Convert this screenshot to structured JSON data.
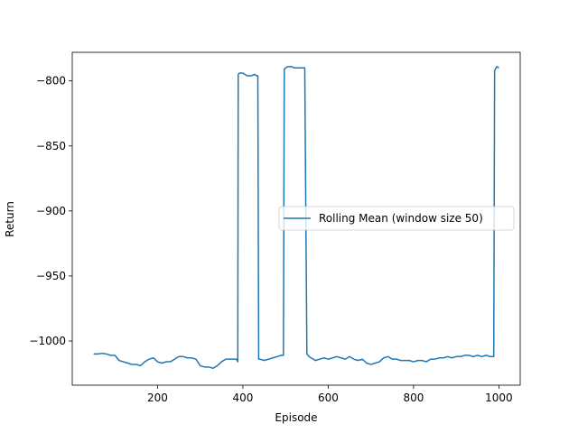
{
  "chart_data": {
    "type": "line",
    "title": "",
    "xlabel": "Episode",
    "ylabel": "Return",
    "xlim": [
      0,
      1050
    ],
    "ylim": [
      -1034,
      -778
    ],
    "xticks": [
      200,
      400,
      600,
      800,
      1000
    ],
    "yticks": [
      -800,
      -850,
      -900,
      -950,
      -1000
    ],
    "xtick_labels": [
      "200",
      "400",
      "600",
      "800",
      "1000"
    ],
    "ytick_labels": [
      "−800",
      "−850",
      "−900",
      "−950",
      "−1000"
    ],
    "grid": false,
    "legend": {
      "placement": "center-right"
    },
    "series": [
      {
        "name": "Rolling Mean (window size 50)",
        "color": "#1f77b4",
        "points": [
          [
            50,
            -1010
          ],
          [
            60,
            -1010
          ],
          [
            70,
            -1009.5
          ],
          [
            80,
            -1010
          ],
          [
            90,
            -1011
          ],
          [
            100,
            -1011
          ],
          [
            110,
            -1015
          ],
          [
            120,
            -1016
          ],
          [
            130,
            -1017
          ],
          [
            140,
            -1018
          ],
          [
            150,
            -1018
          ],
          [
            160,
            -1019
          ],
          [
            170,
            -1016
          ],
          [
            180,
            -1014
          ],
          [
            190,
            -1013
          ],
          [
            200,
            -1016
          ],
          [
            210,
            -1017
          ],
          [
            220,
            -1016
          ],
          [
            230,
            -1016
          ],
          [
            240,
            -1014
          ],
          [
            250,
            -1012
          ],
          [
            260,
            -1012
          ],
          [
            270,
            -1013
          ],
          [
            280,
            -1013
          ],
          [
            290,
            -1014
          ],
          [
            300,
            -1019
          ],
          [
            310,
            -1020
          ],
          [
            320,
            -1020
          ],
          [
            330,
            -1021
          ],
          [
            340,
            -1019
          ],
          [
            350,
            -1016
          ],
          [
            360,
            -1014
          ],
          [
            370,
            -1014
          ],
          [
            385,
            -1014
          ],
          [
            388,
            -1016
          ],
          [
            389,
            -795
          ],
          [
            392,
            -794
          ],
          [
            400,
            -794
          ],
          [
            405,
            -795
          ],
          [
            410,
            -796
          ],
          [
            420,
            -796
          ],
          [
            428,
            -795
          ],
          [
            432,
            -796
          ],
          [
            435,
            -796
          ],
          [
            437,
            -1014
          ],
          [
            440,
            -1014
          ],
          [
            450,
            -1015
          ],
          [
            460,
            -1014
          ],
          [
            470,
            -1013
          ],
          [
            480,
            -1012
          ],
          [
            490,
            -1011
          ],
          [
            495,
            -1011
          ],
          [
            497,
            -791
          ],
          [
            500,
            -790
          ],
          [
            505,
            -789
          ],
          [
            515,
            -789
          ],
          [
            520,
            -790
          ],
          [
            530,
            -790
          ],
          [
            545,
            -790
          ],
          [
            550,
            -1010
          ],
          [
            555,
            -1012
          ],
          [
            560,
            -1013
          ],
          [
            570,
            -1015
          ],
          [
            580,
            -1014
          ],
          [
            590,
            -1013
          ],
          [
            600,
            -1014
          ],
          [
            610,
            -1013
          ],
          [
            620,
            -1012
          ],
          [
            630,
            -1013
          ],
          [
            640,
            -1014
          ],
          [
            650,
            -1012
          ],
          [
            660,
            -1014
          ],
          [
            670,
            -1015
          ],
          [
            680,
            -1014
          ],
          [
            690,
            -1017
          ],
          [
            700,
            -1018
          ],
          [
            710,
            -1017
          ],
          [
            720,
            -1016
          ],
          [
            730,
            -1013
          ],
          [
            740,
            -1012
          ],
          [
            750,
            -1014
          ],
          [
            760,
            -1014
          ],
          [
            770,
            -1015
          ],
          [
            780,
            -1015
          ],
          [
            790,
            -1015
          ],
          [
            800,
            -1016
          ],
          [
            810,
            -1015
          ],
          [
            820,
            -1015
          ],
          [
            830,
            -1016
          ],
          [
            840,
            -1014
          ],
          [
            850,
            -1014
          ],
          [
            860,
            -1013
          ],
          [
            870,
            -1013
          ],
          [
            880,
            -1012
          ],
          [
            890,
            -1013
          ],
          [
            900,
            -1012
          ],
          [
            910,
            -1012
          ],
          [
            920,
            -1011
          ],
          [
            930,
            -1011
          ],
          [
            940,
            -1012
          ],
          [
            950,
            -1011
          ],
          [
            960,
            -1012
          ],
          [
            970,
            -1011
          ],
          [
            980,
            -1012
          ],
          [
            988,
            -1012
          ],
          [
            990,
            -792
          ],
          [
            995,
            -789
          ],
          [
            1000,
            -790
          ]
        ]
      }
    ]
  }
}
